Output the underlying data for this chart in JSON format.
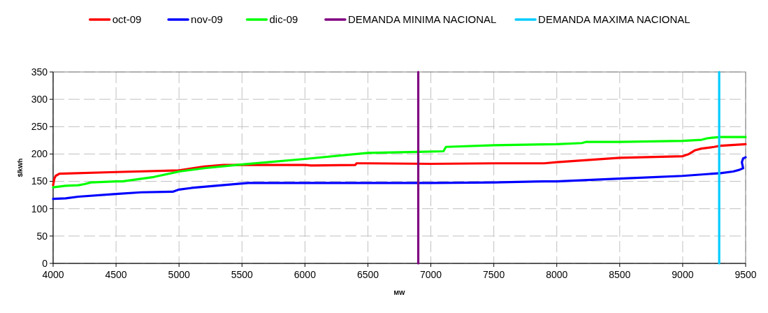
{
  "chart_data": {
    "type": "line",
    "xlabel": "MW",
    "ylabel": "$/kWh",
    "xlim": [
      4000,
      9500
    ],
    "ylim": [
      0,
      350
    ],
    "xticks": [
      4000,
      4500,
      5000,
      5500,
      6000,
      6500,
      7000,
      7500,
      8000,
      8500,
      9000,
      9500
    ],
    "yticks": [
      0,
      50,
      100,
      150,
      200,
      250,
      300,
      350
    ],
    "grid": true,
    "legend": "top",
    "marker": "none",
    "line_style": "solid",
    "series": [
      {
        "name": "oct-09",
        "color": "#ff0000",
        "x": [
          4000,
          4010,
          4020,
          4050,
          4500,
          5000,
          5200,
          5350,
          5500,
          6000,
          6050,
          6400,
          6410,
          6500,
          7000,
          7500,
          7900,
          8000,
          8500,
          9000,
          9050,
          9100,
          9150,
          9250,
          9300,
          9500
        ],
        "values": [
          143,
          155,
          160,
          164,
          167,
          170,
          177,
          180,
          180,
          180,
          179,
          180,
          183,
          183,
          182,
          183,
          183,
          185,
          193,
          196,
          200,
          207,
          210,
          213,
          215,
          218
        ]
      },
      {
        "name": "nov-09",
        "color": "#0000ff",
        "x": [
          4000,
          4100,
          4200,
          4500,
          4700,
          4950,
          5000,
          5100,
          5500,
          5550,
          6000,
          6900,
          7000,
          7500,
          7900,
          8000,
          8500,
          9000,
          9300,
          9400,
          9450,
          9480,
          9470,
          9480,
          9500
        ],
        "values": [
          118,
          119,
          122,
          127,
          130,
          131,
          135,
          138,
          146,
          147,
          147,
          147,
          147,
          148,
          150,
          150,
          155,
          160,
          165,
          168,
          171,
          174,
          185,
          192,
          194
        ]
      },
      {
        "name": "dic-09",
        "color": "#00ff00",
        "x": [
          4000,
          4100,
          4200,
          4250,
          4300,
          4500,
          4550,
          4800,
          5000,
          5200,
          5500,
          6000,
          6500,
          6900,
          7100,
          7120,
          7500,
          8000,
          8200,
          8230,
          8500,
          9000,
          9150,
          9200,
          9300,
          9500
        ],
        "values": [
          139,
          142,
          143,
          145,
          148,
          150,
          150,
          158,
          168,
          174,
          181,
          191,
          202,
          204,
          205,
          213,
          216,
          218,
          220,
          222,
          222,
          224,
          226,
          229,
          231,
          231
        ]
      },
      {
        "name": "DEMANDA MINIMA NACIONAL",
        "color": "#800080",
        "x": [
          6900,
          6900
        ],
        "values": [
          0,
          350
        ]
      },
      {
        "name": "DEMANDA MAXIMA NACIONAL",
        "color": "#00ccff",
        "x": [
          9290,
          9290
        ],
        "values": [
          0,
          350
        ]
      }
    ]
  }
}
